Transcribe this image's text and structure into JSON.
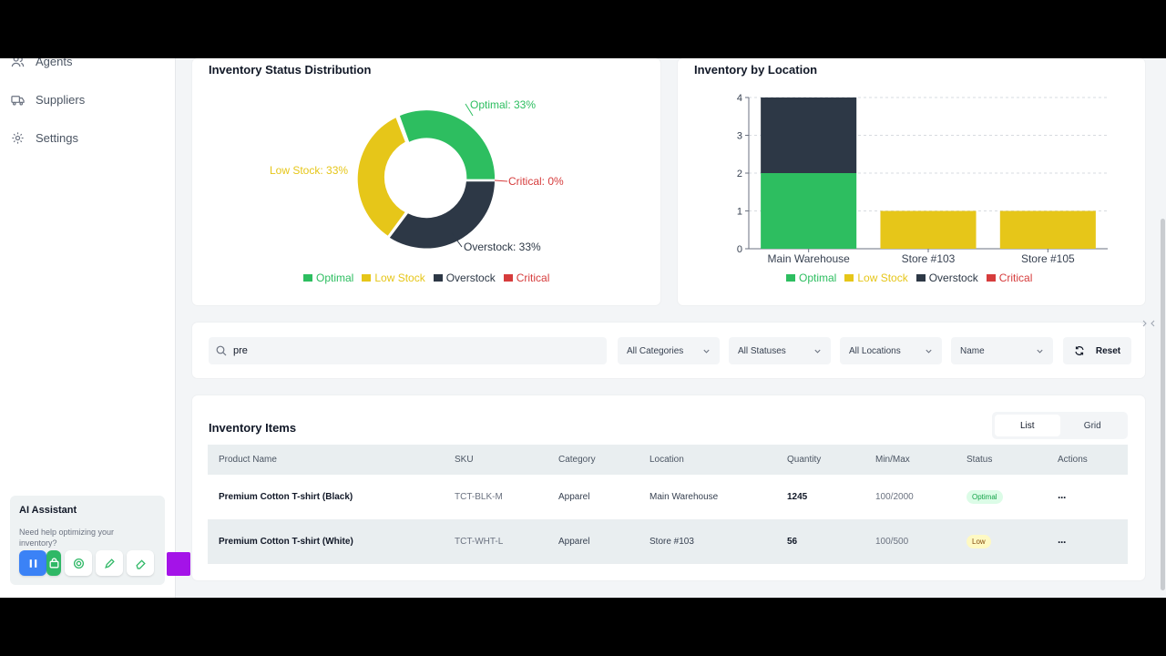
{
  "sidebar": {
    "items": [
      {
        "label": "Agents",
        "icon": "users-icon"
      },
      {
        "label": "Suppliers",
        "icon": "truck-icon"
      },
      {
        "label": "Settings",
        "icon": "gear-icon"
      }
    ],
    "ai_assistant": {
      "title": "AI Assistant",
      "subtitle": "Need help optimizing your inventory?"
    }
  },
  "colors": {
    "optimal": "#2dbe60",
    "low_stock": "#e6c619",
    "overstock": "#2d3846",
    "critical": "#d63c3c"
  },
  "status_chart": {
    "title": "Inventory Status Distribution",
    "labels": {
      "optimal": "Optimal: 33%",
      "low_stock": "Low Stock: 33%",
      "critical": "Critical: 0%",
      "overstock": "Overstock: 33%"
    },
    "legend": [
      "Optimal",
      "Low Stock",
      "Overstock",
      "Critical"
    ]
  },
  "location_chart": {
    "title": "Inventory by Location",
    "legend": [
      "Optimal",
      "Low Stock",
      "Overstock",
      "Critical"
    ],
    "y_ticks": [
      "0",
      "1",
      "2",
      "3",
      "4"
    ]
  },
  "chart_data": [
    {
      "type": "pie",
      "title": "Inventory Status Distribution",
      "categories": [
        "Optimal",
        "Low Stock",
        "Overstock",
        "Critical"
      ],
      "values": [
        1,
        1,
        1,
        0
      ]
    },
    {
      "type": "bar",
      "title": "Inventory by Location",
      "categories": [
        "Main Warehouse",
        "Store #103",
        "Store #105"
      ],
      "series": [
        {
          "name": "Optimal",
          "values": [
            2,
            0,
            0
          ]
        },
        {
          "name": "Low Stock",
          "values": [
            0,
            1,
            1
          ]
        },
        {
          "name": "Overstock",
          "values": [
            2,
            0,
            0
          ]
        },
        {
          "name": "Critical",
          "values": [
            0,
            0,
            0
          ]
        }
      ],
      "ylim": [
        0,
        4
      ],
      "stacked": true,
      "grid": true,
      "legend": "bottom"
    }
  ],
  "filters": {
    "search_value": "pre",
    "category": "All Categories",
    "status": "All Statuses",
    "location": "All Locations",
    "sort": "Name",
    "reset_label": "Reset"
  },
  "items": {
    "title": "Inventory Items",
    "view_list": "List",
    "view_grid": "Grid",
    "columns": [
      "Product Name",
      "SKU",
      "Category",
      "Location",
      "Quantity",
      "Min/Max",
      "Status",
      "Actions"
    ],
    "rows": [
      {
        "name": "Premium Cotton T-shirt (Black)",
        "sku": "TCT-BLK-M",
        "category": "Apparel",
        "location": "Main Warehouse",
        "quantity": "1245",
        "minmax": "100/2000",
        "status": "Optimal",
        "actions": "···"
      },
      {
        "name": "Premium Cotton T-shirt (White)",
        "sku": "TCT-WHT-L",
        "category": "Apparel",
        "location": "Store #103",
        "quantity": "56",
        "minmax": "100/500",
        "status": "Low",
        "actions": "···"
      }
    ]
  }
}
